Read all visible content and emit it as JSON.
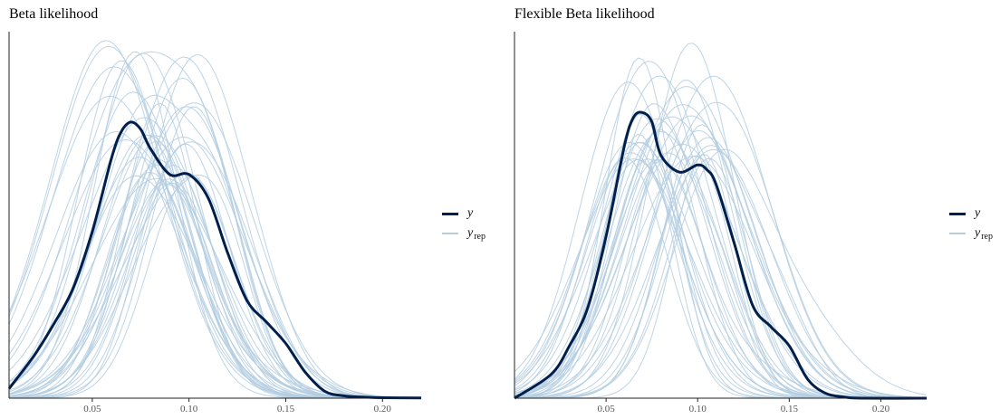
{
  "colors": {
    "observed": "#011f4b",
    "replicated": "#b3cde0",
    "axis": "#222222",
    "tick_text": "#555555"
  },
  "legend": {
    "observed": "y",
    "replicated": "y",
    "replicated_sub": "rep"
  },
  "panels": [
    {
      "title": "Beta likelihood"
    },
    {
      "title": "Flexible Beta likelihood"
    }
  ],
  "chart_data": [
    {
      "type": "line",
      "title": "Beta likelihood",
      "xlabel": "",
      "ylabel": "",
      "xlim": [
        0.007,
        0.22
      ],
      "ylim": [
        0,
        15.4
      ],
      "x_ticks": [
        0.05,
        0.1,
        0.15,
        0.2
      ],
      "x_tick_labels": [
        "0.05",
        "0.10",
        "0.15",
        "0.20"
      ],
      "y_axis_ticks": "none",
      "grid": false,
      "legend_position": "right",
      "series": [
        {
          "name": "y",
          "style": "dark-thick",
          "x": [
            0.007,
            0.02,
            0.03,
            0.04,
            0.05,
            0.06,
            0.065,
            0.07,
            0.075,
            0.08,
            0.09,
            0.1,
            0.11,
            0.12,
            0.13,
            0.14,
            0.15,
            0.16,
            0.17,
            0.18,
            0.19,
            0.2,
            0.22
          ],
          "y": [
            0.4,
            1.8,
            3.1,
            4.6,
            7.0,
            10.1,
            11.2,
            11.6,
            11.3,
            10.5,
            9.4,
            9.4,
            8.4,
            6.1,
            4.1,
            3.2,
            2.3,
            1.1,
            0.3,
            0.1,
            0.05,
            0.02,
            0.01
          ]
        },
        {
          "name": "y_rep",
          "style": "light-thin",
          "count": 40,
          "peak_range_x": [
            0.055,
            0.105
          ],
          "peak_range_y": [
            9,
            15.4
          ]
        }
      ]
    },
    {
      "type": "line",
      "title": "Flexible Beta likelihood",
      "xlabel": "",
      "ylabel": "",
      "xlim": [
        0.0,
        0.225
      ],
      "ylim": [
        0,
        15.4
      ],
      "x_ticks": [
        0.05,
        0.1,
        0.15,
        0.2
      ],
      "x_tick_labels": [
        "0.05",
        "0.10",
        "0.15",
        "0.20"
      ],
      "y_axis_ticks": "none",
      "grid": false,
      "legend_position": "right",
      "series": [
        {
          "name": "y",
          "style": "dark-thick",
          "x": [
            0.0,
            0.02,
            0.03,
            0.04,
            0.05,
            0.06,
            0.065,
            0.07,
            0.075,
            0.08,
            0.09,
            0.1,
            0.105,
            0.11,
            0.12,
            0.13,
            0.14,
            0.15,
            0.16,
            0.17,
            0.18,
            0.19,
            0.225
          ],
          "y": [
            0.0,
            1.0,
            2.2,
            3.8,
            6.8,
            10.6,
            11.8,
            12.0,
            11.6,
            10.2,
            9.5,
            9.8,
            9.6,
            9.0,
            6.5,
            3.9,
            3.0,
            2.2,
            0.8,
            0.2,
            0.05,
            0.0,
            0.0
          ]
        },
        {
          "name": "y_rep",
          "style": "light-thin",
          "count": 40,
          "peak_range_x": [
            0.06,
            0.11
          ],
          "peak_range_y": [
            10,
            15.4
          ]
        }
      ]
    }
  ]
}
